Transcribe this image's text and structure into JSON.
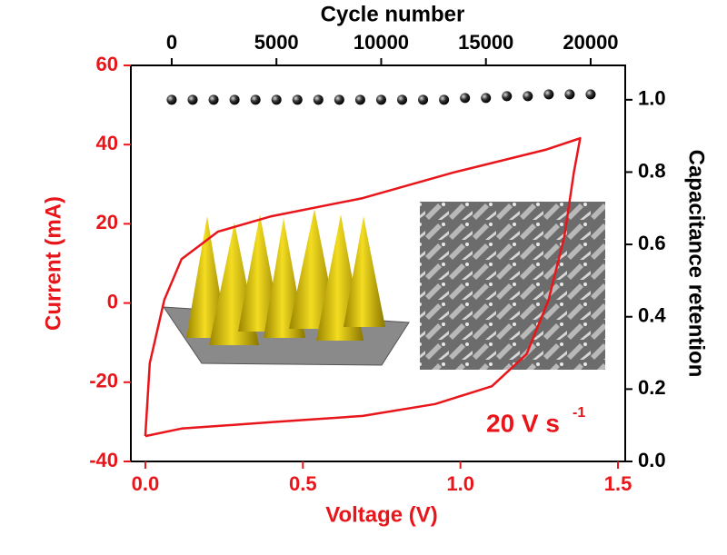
{
  "chart_data": {
    "type": "line",
    "xlabel": "Voltage (V)",
    "ylabel": "Current (mA)",
    "x2label": "Cycle number",
    "y2label": "Capacitance retention",
    "annotation": {
      "text": "20 V s",
      "superscript": "-1"
    },
    "xlim": [
      -0.046,
      1.523
    ],
    "xticks": [
      {
        "value": 0,
        "label": "0.0"
      },
      0.5,
      {
        "value": 1,
        "label": "1.0"
      },
      1.5
    ],
    "ylim": [
      -40,
      60
    ],
    "yticks": [
      60,
      40,
      20,
      0,
      -20,
      -40
    ],
    "x2lim": [
      -1950,
      21650
    ],
    "x2ticks": [
      0,
      5000,
      10000,
      15000,
      20000
    ],
    "y2lim": [
      0,
      1.095
    ],
    "y2ticks": [
      {
        "value": 0,
        "label": "0.0"
      },
      0.2,
      0.4,
      0.6,
      0.8,
      {
        "value": 1,
        "label": "1.0"
      }
    ],
    "left_axis_color": "#e8161b",
    "series": [
      {
        "color": "#e8161b",
        "x": [
          0,
          0.014,
          0.06,
          0.115,
          0.23,
          0.4,
          0.69,
          0.98,
          1.27,
          1.38,
          1.36,
          1.33,
          1.28,
          1.21,
          1.1,
          0.92,
          0.69,
          0.4,
          0.115,
          0
        ],
        "values": [
          -33.6,
          -15.2,
          0.8,
          11.1,
          18,
          21.9,
          26.5,
          33,
          38.7,
          41.6,
          33,
          16.9,
          0.8,
          -12.9,
          -21,
          -25.5,
          -28.5,
          -30.1,
          -31.7,
          -33.6
        ]
      },
      {
        "color": "#111111",
        "axis": "y2",
        "x_axis": "x2",
        "x": [
          0,
          1000,
          2000,
          3000,
          4000,
          5000,
          6000,
          7000,
          8000,
          9000,
          10000,
          11000,
          12000,
          13000,
          14000,
          15000,
          16000,
          17000,
          18000,
          19000,
          20000
        ],
        "values": [
          1.0,
          1.0,
          1.0,
          1.0,
          1.0,
          1.0,
          1.0,
          1.0,
          1.0,
          1.0,
          1.0,
          1.0,
          1.0,
          1.0,
          1.005,
          1.005,
          1.01,
          1.01,
          1.015,
          1.015,
          1.015
        ]
      }
    ]
  }
}
